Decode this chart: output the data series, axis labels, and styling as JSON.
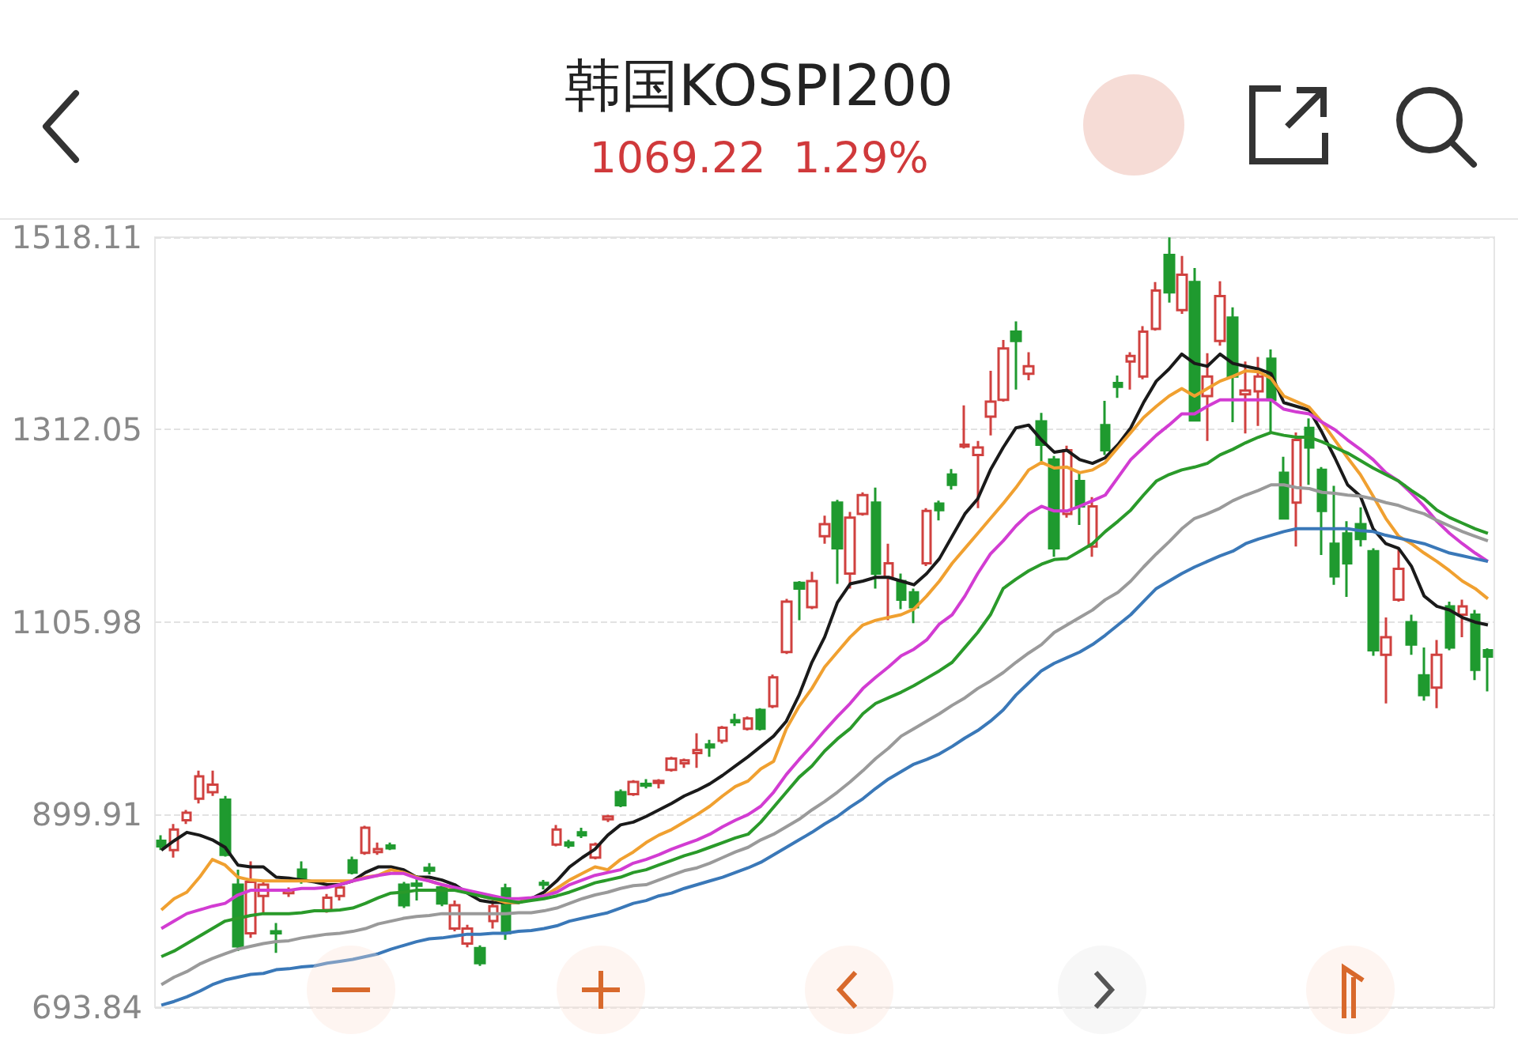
{
  "chart_data": {
    "type": "candlestick",
    "title": "韩国KOSPI200",
    "subtitle": "1069.22  1.29%",
    "categories": [
      null,
      null,
      null,
      null,
      null,
      null,
      null,
      null,
      null,
      null,
      null,
      null,
      null,
      null,
      null,
      null,
      null,
      null,
      null,
      null,
      null,
      null,
      null,
      null,
      null,
      null,
      null,
      null,
      null,
      null,
      null,
      null,
      null,
      null,
      null,
      null,
      null,
      null,
      null,
      null,
      null,
      null,
      null,
      null,
      null,
      null,
      null,
      null,
      null,
      null,
      null,
      null,
      null,
      null,
      null,
      null,
      null,
      null,
      null,
      null,
      null,
      null,
      null,
      null,
      null,
      null,
      null,
      null,
      null,
      null,
      null,
      null,
      null,
      null,
      null,
      null,
      null,
      null,
      null,
      null,
      null,
      null,
      null,
      null,
      null,
      null,
      null,
      null,
      null,
      null,
      null,
      null,
      null,
      null,
      null,
      null,
      null,
      null,
      null,
      null,
      null,
      null,
      null,
      null,
      null
    ],
    "ohlc": [
      [
        872,
        878,
        862,
        866
      ],
      [
        862,
        890,
        854,
        884
      ],
      [
        894,
        905,
        890,
        902
      ],
      [
        917,
        947,
        912,
        941
      ],
      [
        924,
        947,
        920,
        932
      ],
      [
        916,
        920,
        855,
        857
      ],
      [
        825,
        841,
        754,
        759
      ],
      [
        773,
        850,
        768,
        828
      ],
      [
        813,
        830,
        795,
        825
      ],
      [
        775,
        784,
        752,
        773
      ],
      [
        816,
        822,
        812,
        819
      ],
      [
        841,
        850,
        826,
        830
      ],
      null,
      [
        798,
        815,
        795,
        811
      ],
      [
        813,
        826,
        808,
        822
      ],
      [
        851,
        855,
        836,
        838
      ],
      [
        859,
        888,
        857,
        886
      ],
      [
        860,
        870,
        857,
        863
      ],
      [
        867,
        870,
        862,
        864
      ],
      [
        825,
        828,
        800,
        803
      ],
      [
        826,
        835,
        808,
        824
      ],
      [
        843,
        848,
        836,
        840
      ],
      [
        822,
        826,
        802,
        805
      ],
      [
        778,
        808,
        775,
        803
      ],
      [
        762,
        782,
        758,
        778
      ],
      [
        757,
        760,
        738,
        741
      ],
      [
        786,
        808,
        778,
        802
      ],
      [
        821,
        826,
        766,
        773
      ],
      null,
      null,
      [
        827,
        830,
        820,
        825
      ],
      [
        868,
        889,
        866,
        884
      ],
      [
        870,
        873,
        864,
        867
      ],
      [
        881,
        886,
        875,
        878
      ],
      [
        854,
        870,
        852,
        868
      ],
      [
        895,
        900,
        892,
        898
      ],
      [
        924,
        927,
        908,
        910
      ],
      [
        922,
        937,
        920,
        935
      ],
      [
        933,
        938,
        928,
        931
      ],
      [
        934,
        938,
        928,
        936
      ],
      [
        948,
        962,
        946,
        960
      ],
      [
        955,
        960,
        950,
        958
      ],
      [
        966,
        987,
        950,
        969
      ],
      [
        975,
        980,
        962,
        972
      ],
      [
        979,
        995,
        976,
        993
      ],
      [
        1001,
        1008,
        995,
        999
      ],
      [
        992,
        1005,
        990,
        1003
      ],
      [
        1012,
        1014,
        990,
        992
      ],
      [
        1016,
        1050,
        1014,
        1047
      ],
      [
        1074,
        1131,
        1072,
        1128
      ],
      [
        1148,
        1150,
        1108,
        1142
      ],
      [
        1122,
        1160,
        1120,
        1150
      ],
      [
        1198,
        1220,
        1190,
        1211
      ],
      [
        1234,
        1237,
        1147,
        1185
      ],
      [
        1158,
        1224,
        1142,
        1218
      ],
      [
        1222,
        1245,
        1220,
        1242
      ],
      [
        1234,
        1250,
        1142,
        1158
      ],
      [
        1154,
        1190,
        1108,
        1169
      ],
      [
        1150,
        1158,
        1120,
        1130
      ],
      [
        1138,
        1142,
        1105,
        1122
      ],
      [
        1169,
        1228,
        1166,
        1225
      ],
      [
        1233,
        1236,
        1215,
        1226
      ],
      [
        1264,
        1270,
        1248,
        1253
      ],
      [
        1294,
        1338,
        1292,
        1296
      ],
      [
        1285,
        1300,
        1228,
        1293
      ],
      [
        1326,
        1375,
        1306,
        1342
      ],
      [
        1344,
        1408,
        1342,
        1399
      ],
      [
        1417,
        1428,
        1355,
        1407
      ],
      [
        1372,
        1395,
        1365,
        1380
      ],
      [
        1321,
        1330,
        1278,
        1296
      ],
      [
        1280,
        1284,
        1176,
        1185
      ],
      [
        1222,
        1295,
        1218,
        1290
      ],
      [
        1257,
        1266,
        1210,
        1230
      ],
      [
        1187,
        1240,
        1176,
        1230
      ],
      [
        1317,
        1343,
        1285,
        1290
      ],
      [
        1362,
        1370,
        1346,
        1358
      ],
      [
        1385,
        1395,
        1355,
        1391
      ],
      [
        1369,
        1423,
        1366,
        1417
      ],
      [
        1420,
        1470,
        1418,
        1461
      ],
      [
        1499,
        1518,
        1448,
        1459
      ],
      [
        1440,
        1498,
        1436,
        1478
      ],
      [
        1470,
        1485,
        1322,
        1322
      ],
      [
        1348,
        1394,
        1300,
        1369
      ],
      [
        1407,
        1471,
        1402,
        1455
      ],
      [
        1432,
        1443,
        1320,
        1369
      ],
      [
        1350,
        1385,
        1308,
        1354
      ],
      [
        1353,
        1390,
        1316,
        1369
      ],
      [
        1388,
        1398,
        1308,
        1344
      ],
      [
        1266,
        1283,
        1216,
        1217
      ],
      [
        1234,
        1309,
        1187,
        1301
      ],
      [
        1314,
        1324,
        1253,
        1293
      ],
      [
        1269,
        1272,
        1178,
        1225
      ],
      [
        1190,
        1252,
        1146,
        1155
      ],
      [
        1201,
        1214,
        1133,
        1169
      ],
      [
        1211,
        1229,
        1187,
        1195
      ],
      [
        1182,
        1185,
        1070,
        1076
      ],
      [
        1071,
        1111,
        1019,
        1090
      ],
      [
        1130,
        1185,
        1128,
        1163
      ],
      [
        1106,
        1114,
        1071,
        1082
      ],
      [
        1049,
        1079,
        1022,
        1028
      ],
      [
        1036,
        1087,
        1014,
        1071
      ],
      [
        1123,
        1128,
        1076,
        1079
      ],
      [
        1114,
        1130,
        1090,
        1123
      ],
      [
        1114,
        1119,
        1044,
        1055
      ],
      [
        1076,
        1078,
        1032,
        1069.22
      ]
    ],
    "series": [
      {
        "type": "line",
        "color": "#1a1a1a",
        "values": [
          862,
          872,
          881,
          878,
          873,
          865,
          846,
          844,
          844,
          833,
          832,
          830,
          828,
          825,
          825,
          829,
          838,
          844,
          844,
          841,
          833,
          833,
          830,
          825,
          816,
          808,
          806,
          806,
          806,
          810,
          817,
          829,
          844,
          854,
          863,
          878,
          889,
          892,
          898,
          905,
          912,
          920,
          926,
          933,
          942,
          952,
          962,
          973,
          984,
          1000,
          1028,
          1063,
          1090,
          1127,
          1147,
          1150,
          1154,
          1154,
          1150,
          1146,
          1158,
          1174,
          1198,
          1222,
          1238,
          1269,
          1293,
          1314,
          1317,
          1301,
          1288,
          1290,
          1280,
          1276,
          1282,
          1296,
          1314,
          1341,
          1364,
          1377,
          1393,
          1383,
          1380,
          1393,
          1383,
          1380,
          1377,
          1372,
          1341,
          1337,
          1333,
          1309,
          1282,
          1253,
          1241,
          1206,
          1190,
          1185,
          1166,
          1134,
          1123,
          1119,
          1111,
          1106,
          1103
        ]
      },
      {
        "type": "line",
        "color": "#f0a030",
        "values": [
          798,
          810,
          817,
          833,
          852,
          846,
          833,
          830,
          829,
          829,
          829,
          829,
          829,
          829,
          829,
          829,
          833,
          835,
          841,
          838,
          833,
          829,
          825,
          821,
          817,
          813,
          810,
          806,
          806,
          810,
          813,
          821,
          830,
          837,
          844,
          841,
          852,
          860,
          870,
          878,
          884,
          892,
          900,
          909,
          920,
          930,
          936,
          949,
          957,
          992,
          1016,
          1035,
          1058,
          1074,
          1090,
          1103,
          1108,
          1111,
          1114,
          1120,
          1134,
          1150,
          1169,
          1185,
          1201,
          1217,
          1233,
          1250,
          1269,
          1277,
          1271,
          1272,
          1266,
          1269,
          1277,
          1293,
          1309,
          1325,
          1337,
          1348,
          1356,
          1348,
          1356,
          1364,
          1369,
          1375,
          1374,
          1367,
          1348,
          1342,
          1336,
          1320,
          1301,
          1282,
          1264,
          1241,
          1217,
          1198,
          1190,
          1180,
          1171,
          1161,
          1150,
          1142,
          1131
        ]
      },
      {
        "type": "line",
        "color": "#d23cd2",
        "values": [
          778,
          786,
          794,
          798,
          802,
          805,
          814,
          819,
          819,
          819,
          819,
          821,
          821,
          822,
          825,
          829,
          832,
          835,
          837,
          837,
          832,
          829,
          825,
          822,
          819,
          816,
          813,
          810,
          810,
          811,
          813,
          817,
          825,
          830,
          835,
          838,
          841,
          848,
          852,
          857,
          863,
          868,
          873,
          879,
          887,
          894,
          900,
          909,
          924,
          943,
          959,
          974,
          990,
          1005,
          1019,
          1035,
          1047,
          1058,
          1070,
          1077,
          1087,
          1104,
          1114,
          1134,
          1158,
          1179,
          1193,
          1209,
          1222,
          1230,
          1225,
          1225,
          1230,
          1236,
          1242,
          1261,
          1280,
          1293,
          1306,
          1317,
          1329,
          1329,
          1337,
          1344,
          1344,
          1344,
          1344,
          1344,
          1334,
          1331,
          1329,
          1320,
          1312,
          1301,
          1291,
          1280,
          1266,
          1257,
          1244,
          1230,
          1214,
          1201,
          1190,
          1180,
          1171
        ]
      },
      {
        "type": "line",
        "color": "#2a9a2a",
        "values": [
          748,
          754,
          762,
          770,
          778,
          786,
          789,
          792,
          794,
          794,
          794,
          795,
          797,
          797,
          798,
          800,
          805,
          811,
          816,
          817,
          819,
          819,
          819,
          819,
          816,
          813,
          810,
          808,
          806,
          808,
          810,
          813,
          817,
          822,
          827,
          830,
          833,
          838,
          841,
          846,
          851,
          856,
          860,
          865,
          870,
          875,
          879,
          892,
          908,
          924,
          940,
          952,
          968,
          981,
          992,
          1008,
          1019,
          1025,
          1031,
          1038,
          1046,
          1054,
          1063,
          1079,
          1095,
          1114,
          1142,
          1152,
          1161,
          1168,
          1173,
          1174,
          1182,
          1190,
          1203,
          1214,
          1226,
          1242,
          1257,
          1264,
          1269,
          1272,
          1276,
          1285,
          1291,
          1298,
          1304,
          1309,
          1306,
          1304,
          1304,
          1299,
          1293,
          1287,
          1279,
          1271,
          1264,
          1257,
          1247,
          1238,
          1226,
          1218,
          1212,
          1206,
          1201
        ]
      },
      {
        "type": "line",
        "color": "#9a9a9a",
        "values": [
          718,
          726,
          732,
          740,
          746,
          751,
          756,
          759,
          762,
          764,
          765,
          768,
          770,
          772,
          773,
          775,
          778,
          783,
          786,
          789,
          791,
          792,
          794,
          794,
          794,
          794,
          794,
          794,
          795,
          795,
          797,
          800,
          805,
          810,
          814,
          817,
          821,
          824,
          825,
          830,
          835,
          840,
          843,
          848,
          854,
          860,
          865,
          873,
          879,
          887,
          895,
          905,
          914,
          924,
          935,
          947,
          960,
          971,
          984,
          992,
          1000,
          1008,
          1017,
          1025,
          1035,
          1043,
          1052,
          1063,
          1073,
          1082,
          1095,
          1103,
          1111,
          1119,
          1130,
          1138,
          1150,
          1165,
          1179,
          1192,
          1206,
          1217,
          1222,
          1228,
          1236,
          1242,
          1247,
          1253,
          1253,
          1250,
          1249,
          1245,
          1244,
          1242,
          1241,
          1238,
          1234,
          1231,
          1226,
          1222,
          1215,
          1209,
          1203,
          1198,
          1193
        ]
      },
      {
        "type": "line",
        "color": "#3a78b8",
        "values": [
          696,
          700,
          705,
          711,
          718,
          723,
          726,
          729,
          730,
          734,
          735,
          737,
          738,
          741,
          743,
          745,
          748,
          751,
          756,
          760,
          764,
          767,
          768,
          770,
          772,
          772,
          773,
          773,
          775,
          776,
          778,
          781,
          786,
          789,
          792,
          795,
          800,
          805,
          808,
          813,
          816,
          821,
          825,
          829,
          833,
          838,
          843,
          849,
          857,
          865,
          873,
          881,
          890,
          898,
          908,
          917,
          928,
          938,
          946,
          954,
          959,
          965,
          973,
          982,
          990,
          1000,
          1012,
          1028,
          1041,
          1054,
          1062,
          1068,
          1074,
          1082,
          1092,
          1103,
          1114,
          1128,
          1142,
          1150,
          1158,
          1165,
          1171,
          1177,
          1182,
          1190,
          1195,
          1199,
          1203,
          1206,
          1206,
          1206,
          1206,
          1206,
          1204,
          1203,
          1199,
          1196,
          1193,
          1190,
          1185,
          1180,
          1177,
          1174,
          1171
        ]
      }
    ],
    "ylim": [
      693.84,
      1518.11
    ],
    "yticks": [
      693.84,
      899.91,
      1105.98,
      1312.05,
      1518.11
    ],
    "grid": "y",
    "tick_labels": "y"
  }
}
